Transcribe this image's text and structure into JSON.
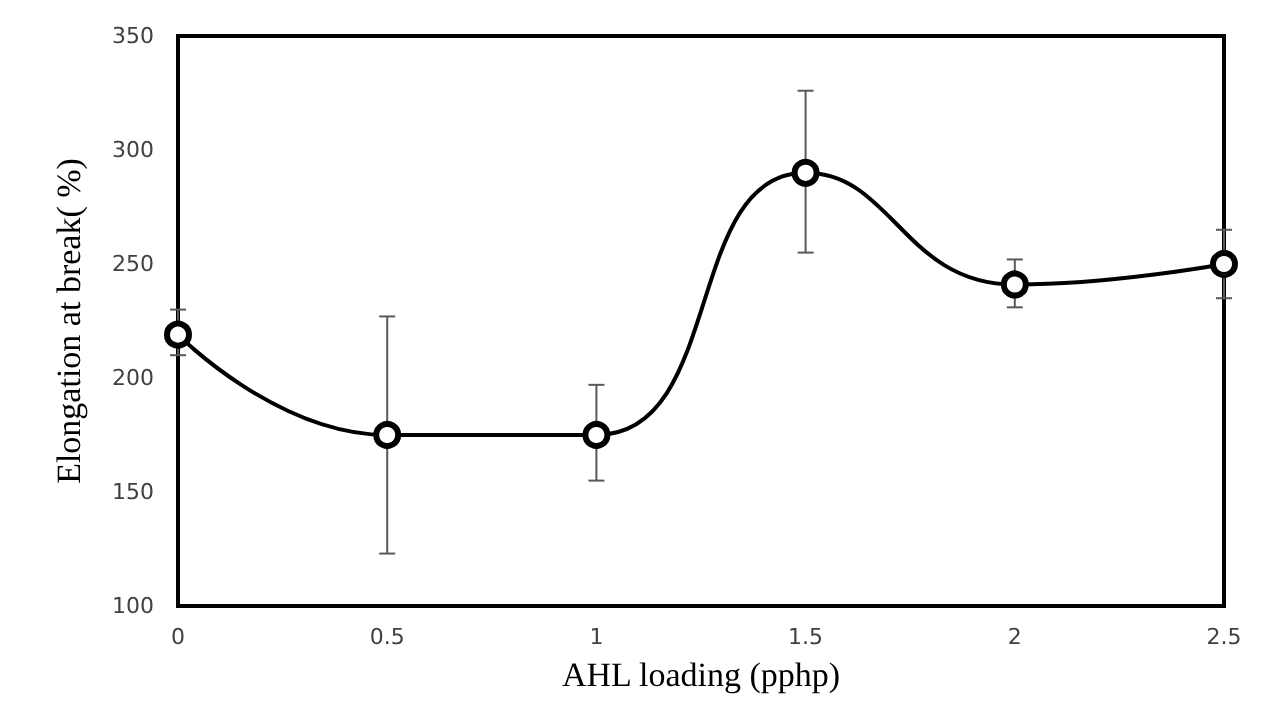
{
  "chart_data": {
    "type": "line",
    "xlabel": "AHL loading (pphp)",
    "ylabel": "Elongation at break( %)",
    "x": [
      0,
      0.5,
      1,
      1.5,
      2,
      2.5
    ],
    "series": [
      {
        "color": "#000000",
        "values": [
          219,
          175,
          175,
          290,
          241,
          250
        ],
        "errors": [
          [
            210,
            230
          ],
          [
            123,
            227
          ],
          [
            155,
            197
          ],
          [
            255,
            326
          ],
          [
            231,
            252
          ],
          [
            235,
            265
          ]
        ]
      }
    ],
    "xlim": [
      0,
      2.5
    ],
    "xticks": [
      0,
      0.5,
      1,
      1.5,
      2,
      2.5
    ],
    "ylim": [
      100,
      350
    ],
    "yticks": [
      100,
      150,
      200,
      250,
      300,
      350
    ],
    "grid": false,
    "marker": "circle",
    "line_style": "solid"
  }
}
